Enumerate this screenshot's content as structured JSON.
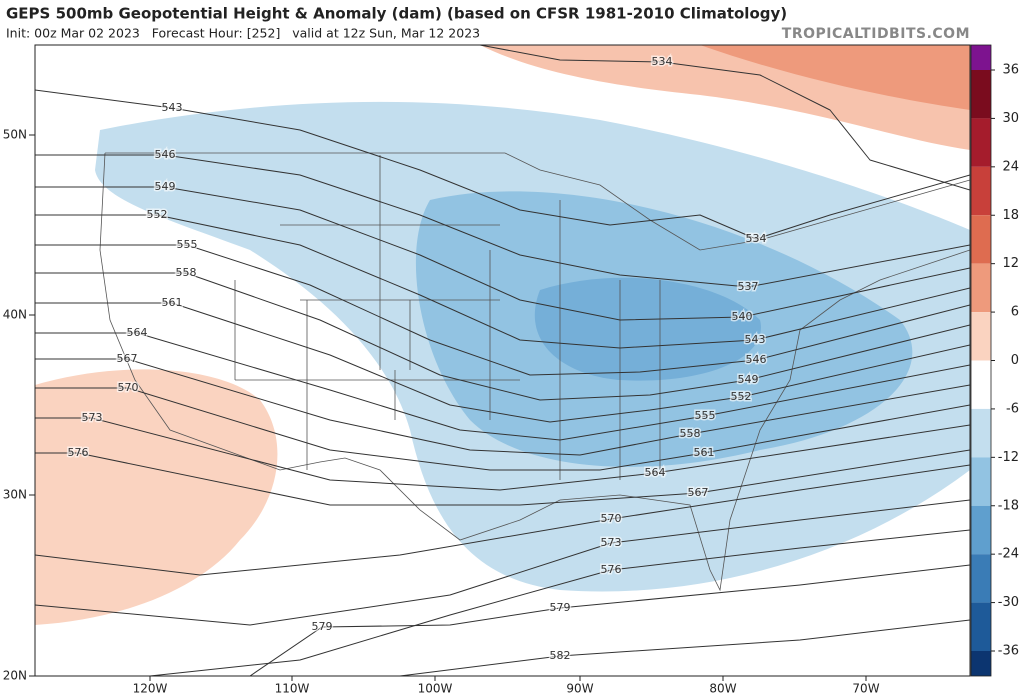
{
  "header": {
    "title": "GEPS 500mb Geopotential Height & Anomaly (dam) (based on CFSR 1981-2010 Climatology)",
    "subtitle": "Init: 00z Mar 02 2023   Forecast Hour: [252]   valid at 12z Sun, Mar 12 2023",
    "site": "TROPICALTIDBITS.COM"
  },
  "map": {
    "latitude_labels": [
      "50N",
      "40N",
      "30N",
      "20N"
    ],
    "longitude_labels": [
      "120W",
      "110W",
      "100W",
      "90W",
      "80W",
      "70W"
    ],
    "contour_labels": [
      534,
      543,
      546,
      549,
      552,
      555,
      558,
      561,
      564,
      567,
      570,
      573,
      576,
      534,
      537,
      540,
      543,
      546,
      549,
      552,
      555,
      558,
      561,
      564,
      567,
      570,
      573,
      576,
      579,
      579,
      582
    ]
  },
  "colorbar": {
    "ticks": [
      36,
      30,
      24,
      18,
      12,
      6,
      0,
      -6,
      -12,
      -18,
      -24,
      -30,
      -36
    ],
    "colors": [
      "#7d138f",
      "#7a0c1e",
      "#a51c2c",
      "#c8403a",
      "#de6c50",
      "#ee9a7c",
      "#fad3c0",
      "#ffffff",
      "#c3deee",
      "#92c3e2",
      "#5f9fce",
      "#3a7cb6",
      "#1e5a99",
      "#0c3570"
    ]
  }
}
